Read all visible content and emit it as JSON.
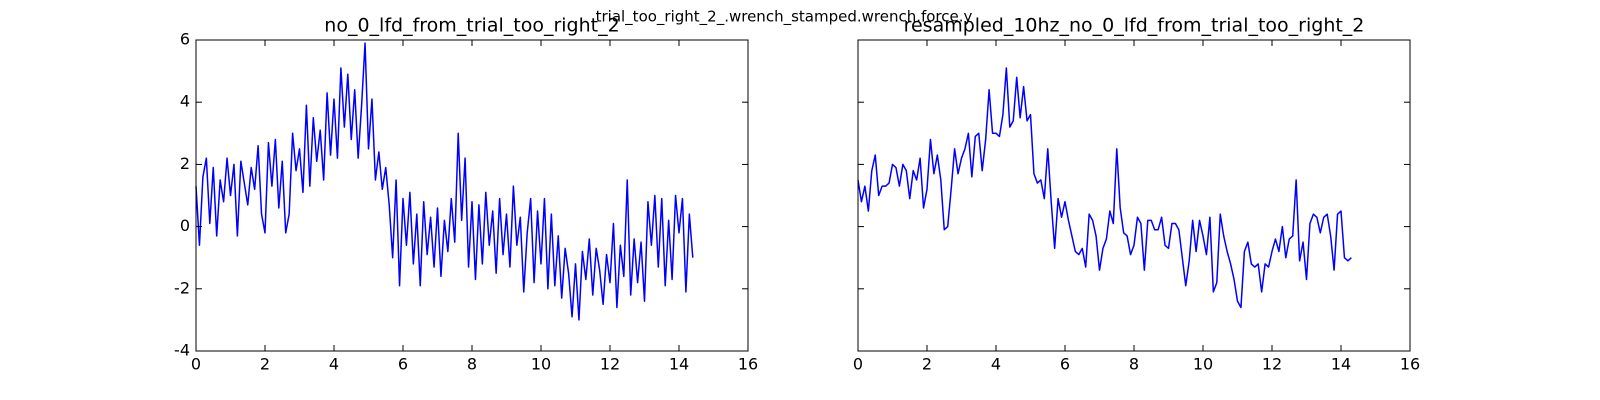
{
  "suptitle": "trial_too_right_2_.wrench_stamped.wrench.force.y",
  "chart_data": [
    {
      "type": "line",
      "title": "no_0_lfd_from_trial_too_right_2",
      "color": "#0000ff",
      "xlim": [
        0,
        16
      ],
      "xticks": [
        0,
        2,
        4,
        6,
        8,
        10,
        12,
        14,
        16
      ],
      "ylim": [
        -4,
        6
      ],
      "yticks": [
        -4,
        -2,
        0,
        2,
        4,
        6
      ],
      "show_ytick_labels": true,
      "x": [
        0,
        0.1,
        0.2,
        0.3,
        0.4,
        0.5,
        0.6,
        0.7,
        0.8,
        0.9,
        1,
        1.1,
        1.2,
        1.3,
        1.4,
        1.5,
        1.6,
        1.7,
        1.8,
        1.9,
        2,
        2.1,
        2.2,
        2.3,
        2.4,
        2.5,
        2.6,
        2.7,
        2.8,
        2.9,
        3,
        3.1,
        3.2,
        3.3,
        3.4,
        3.5,
        3.6,
        3.7,
        3.8,
        3.9,
        4,
        4.1,
        4.2,
        4.3,
        4.4,
        4.5,
        4.6,
        4.7,
        4.8,
        4.9,
        5,
        5.1,
        5.2,
        5.3,
        5.4,
        5.5,
        5.6,
        5.7,
        5.8,
        5.9,
        6,
        6.1,
        6.2,
        6.3,
        6.4,
        6.5,
        6.6,
        6.7,
        6.8,
        6.9,
        7,
        7.1,
        7.2,
        7.3,
        7.4,
        7.5,
        7.6,
        7.7,
        7.8,
        7.9,
        8,
        8.1,
        8.2,
        8.3,
        8.4,
        8.5,
        8.6,
        8.7,
        8.8,
        8.9,
        9,
        9.1,
        9.2,
        9.3,
        9.4,
        9.5,
        9.6,
        9.7,
        9.8,
        9.9,
        10,
        10.1,
        10.2,
        10.3,
        10.4,
        10.5,
        10.6,
        10.7,
        10.8,
        10.9,
        11,
        11.1,
        11.2,
        11.3,
        11.4,
        11.5,
        11.6,
        11.7,
        11.8,
        11.9,
        12,
        12.1,
        12.2,
        12.3,
        12.4,
        12.5,
        12.6,
        12.7,
        12.8,
        12.9,
        13,
        13.1,
        13.2,
        13.3,
        13.4,
        13.5,
        13.6,
        13.7,
        13.8,
        13.9,
        14,
        14.1,
        14.2,
        14.3,
        14.4
      ],
      "values": [
        1.3,
        -0.6,
        1.6,
        2.2,
        0.1,
        1.9,
        -0.3,
        1.5,
        0.8,
        2.2,
        1.0,
        2.0,
        -0.3,
        2.1,
        1.4,
        0.7,
        1.9,
        1.2,
        2.6,
        0.4,
        -0.2,
        2.7,
        1.3,
        2.8,
        0.6,
        2.1,
        -0.2,
        0.4,
        3.0,
        1.8,
        2.5,
        1.1,
        3.9,
        1.3,
        3.5,
        2.1,
        3.1,
        1.5,
        4.3,
        2.3,
        4.1,
        2.2,
        5.1,
        3.2,
        4.9,
        2.8,
        4.4,
        2.2,
        3.9,
        5.9,
        2.5,
        4.1,
        1.5,
        2.4,
        1.2,
        1.9,
        0.7,
        -1.0,
        1.5,
        -1.9,
        0.9,
        -0.6,
        1.1,
        -1.2,
        0.4,
        -1.9,
        0.8,
        -0.9,
        0.3,
        -1.3,
        0.6,
        -1.6,
        0.2,
        -0.8,
        0.9,
        -0.5,
        3.0,
        0.2,
        2.2,
        -1.3,
        0.8,
        -1.7,
        0.7,
        -1.2,
        1.1,
        -0.6,
        0.5,
        -1.5,
        0.9,
        -0.9,
        0.4,
        -1.3,
        1.3,
        -0.6,
        0.3,
        -2.1,
        -0.2,
        0.9,
        -1.8,
        0.5,
        -1.2,
        0.9,
        -2.0,
        0.4,
        -1.9,
        -0.3,
        -2.3,
        -0.7,
        -1.5,
        -2.9,
        -1.2,
        -3.0,
        -0.8,
        -1.7,
        -0.4,
        -2.2,
        -0.7,
        -1.4,
        -2.5,
        -0.9,
        -1.8,
        0.1,
        -2.6,
        -0.6,
        -1.6,
        1.5,
        -2.2,
        -0.4,
        -1.8,
        -0.5,
        -2.4,
        0.8,
        -0.6,
        1.0,
        -1.3,
        0.9,
        -1.9,
        0.2,
        -1.7,
        1.0,
        -0.2,
        0.9,
        -2.1,
        0.4,
        -1.0
      ]
    },
    {
      "type": "line",
      "title": "resampled_10hz_no_0_lfd_from_trial_too_right_2",
      "color": "#0000ff",
      "xlim": [
        0,
        16
      ],
      "xticks": [
        0,
        2,
        4,
        6,
        8,
        10,
        12,
        14,
        16
      ],
      "ylim": [
        -4,
        6
      ],
      "yticks": [
        -4,
        -2,
        0,
        2,
        4,
        6
      ],
      "show_ytick_labels": false,
      "x": [
        0,
        0.1,
        0.2,
        0.3,
        0.4,
        0.5,
        0.6,
        0.7,
        0.8,
        0.9,
        1,
        1.1,
        1.2,
        1.3,
        1.4,
        1.5,
        1.6,
        1.7,
        1.8,
        1.9,
        2,
        2.1,
        2.2,
        2.3,
        2.4,
        2.5,
        2.6,
        2.7,
        2.8,
        2.9,
        3,
        3.1,
        3.2,
        3.3,
        3.4,
        3.5,
        3.6,
        3.7,
        3.8,
        3.9,
        4,
        4.1,
        4.2,
        4.3,
        4.4,
        4.5,
        4.6,
        4.7,
        4.8,
        4.9,
        5,
        5.1,
        5.2,
        5.3,
        5.4,
        5.5,
        5.6,
        5.7,
        5.8,
        5.9,
        6,
        6.1,
        6.2,
        6.3,
        6.4,
        6.5,
        6.6,
        6.7,
        6.8,
        6.9,
        7,
        7.1,
        7.2,
        7.3,
        7.4,
        7.5,
        7.6,
        7.7,
        7.8,
        7.9,
        8,
        8.1,
        8.2,
        8.3,
        8.4,
        8.5,
        8.6,
        8.7,
        8.8,
        8.9,
        9,
        9.1,
        9.2,
        9.3,
        9.4,
        9.5,
        9.6,
        9.7,
        9.8,
        9.9,
        10,
        10.1,
        10.2,
        10.3,
        10.4,
        10.5,
        10.6,
        10.7,
        10.8,
        10.9,
        11,
        11.1,
        11.2,
        11.3,
        11.4,
        11.5,
        11.6,
        11.7,
        11.8,
        11.9,
        12,
        12.1,
        12.2,
        12.3,
        12.4,
        12.5,
        12.6,
        12.7,
        12.8,
        12.9,
        13,
        13.1,
        13.2,
        13.3,
        13.4,
        13.5,
        13.6,
        13.7,
        13.8,
        13.9,
        14,
        14.1,
        14.2,
        14.3
      ],
      "values": [
        1.5,
        0.8,
        1.3,
        0.5,
        1.8,
        2.3,
        1.0,
        1.3,
        1.3,
        1.4,
        2.0,
        1.9,
        1.3,
        2.0,
        1.8,
        0.9,
        1.8,
        1.5,
        2.2,
        0.6,
        1.2,
        2.8,
        1.7,
        2.3,
        1.5,
        -0.1,
        0.0,
        1.2,
        2.5,
        1.7,
        2.2,
        2.5,
        3.0,
        1.6,
        2.9,
        3.0,
        1.8,
        2.8,
        4.4,
        3.0,
        3.0,
        2.9,
        3.6,
        5.1,
        3.2,
        3.4,
        4.8,
        3.5,
        4.5,
        3.4,
        3.6,
        1.7,
        1.4,
        1.5,
        0.9,
        2.5,
        0.8,
        -0.7,
        0.9,
        0.3,
        0.8,
        0.2,
        -0.3,
        -0.8,
        -0.9,
        -0.7,
        -1.3,
        0.4,
        0.2,
        -0.3,
        -1.4,
        -0.7,
        -0.4,
        0.5,
        0.1,
        2.5,
        0.6,
        -0.2,
        -0.3,
        -0.9,
        -0.6,
        0.3,
        0.1,
        -1.4,
        0.2,
        0.2,
        -0.1,
        -0.1,
        0.3,
        -0.6,
        -0.7,
        0.1,
        0.1,
        -0.1,
        -1.0,
        -1.9,
        -1.1,
        0.2,
        -0.8,
        0.2,
        -0.3,
        -0.9,
        0.3,
        -2.1,
        -1.8,
        0.4,
        -0.3,
        -0.8,
        -1.2,
        -1.7,
        -2.4,
        -2.6,
        -0.8,
        -0.5,
        -1.2,
        -1.3,
        -1.2,
        -2.1,
        -1.2,
        -1.3,
        -0.8,
        -0.4,
        -0.8,
        0.0,
        -1.0,
        -0.4,
        -0.3,
        1.5,
        -1.1,
        -0.5,
        -1.7,
        0.1,
        0.4,
        0.3,
        -0.2,
        0.3,
        0.4,
        -0.3,
        -1.4,
        0.4,
        0.5,
        -1.0,
        -1.1,
        -1.0
      ]
    }
  ]
}
